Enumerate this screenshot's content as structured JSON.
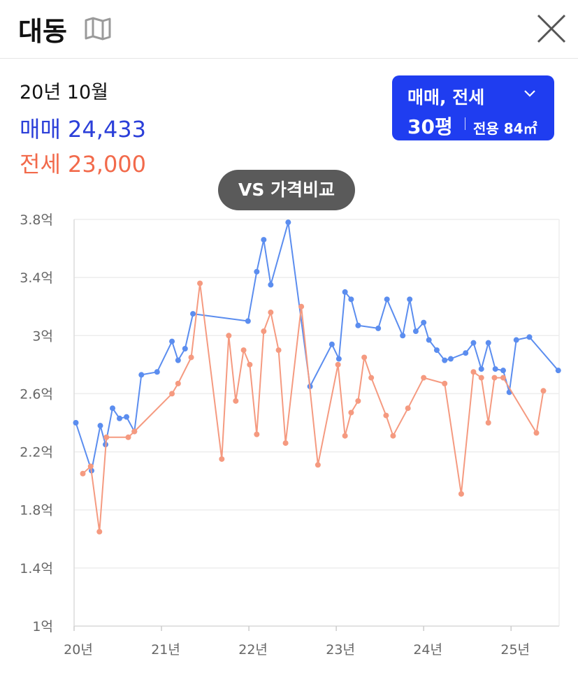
{
  "header": {
    "title": "대동",
    "map_icon": "map-icon",
    "close_icon": "close-icon"
  },
  "summary": {
    "date": "20년 10월",
    "sale_label": "매매 24,433",
    "rent_label": "전세 23,000",
    "sale_color": "#2b3fd9",
    "rent_color": "#f26a4b"
  },
  "selector": {
    "type_label": "매매, 전세",
    "size_label": "30평",
    "area_label": "전용 84㎡",
    "bg_color": "#1f3df0"
  },
  "compare_button": {
    "label": "VS 가격비교"
  },
  "chart_data": {
    "type": "line",
    "x_tick_labels": [
      "20년",
      "21년",
      "22년",
      "23년",
      "24년",
      "25년"
    ],
    "x_tick_values": [
      2020,
      2021,
      2022,
      2023,
      2024,
      2025
    ],
    "xlim": [
      2020,
      2025.55
    ],
    "y_tick_labels": [
      "1억",
      "1.4억",
      "1.8억",
      "2.2억",
      "2.6억",
      "3억",
      "3.4억",
      "3.8억"
    ],
    "y_tick_values": [
      1.0,
      1.4,
      1.8,
      2.2,
      2.6,
      3.0,
      3.4,
      3.8
    ],
    "ylim": [
      1.0,
      3.8
    ],
    "grid": true,
    "series": [
      {
        "color": "#5b8def",
        "points": [
          [
            2020.02,
            2.4
          ],
          [
            2020.2,
            2.07
          ],
          [
            2020.3,
            2.38
          ],
          [
            2020.36,
            2.25
          ],
          [
            2020.44,
            2.5
          ],
          [
            2020.52,
            2.43
          ],
          [
            2020.6,
            2.44
          ],
          [
            2020.69,
            2.34
          ],
          [
            2020.77,
            2.73
          ],
          [
            2020.95,
            2.75
          ],
          [
            2021.12,
            2.96
          ],
          [
            2021.19,
            2.83
          ],
          [
            2021.27,
            2.91
          ],
          [
            2021.36,
            3.15
          ],
          [
            2021.99,
            3.1
          ],
          [
            2022.09,
            3.44
          ],
          [
            2022.17,
            3.66
          ],
          [
            2022.25,
            3.35
          ],
          [
            2022.45,
            3.78
          ],
          [
            2022.7,
            2.65
          ],
          [
            2022.95,
            2.94
          ],
          [
            2023.03,
            2.84
          ],
          [
            2023.1,
            3.3
          ],
          [
            2023.17,
            3.25
          ],
          [
            2023.25,
            3.07
          ],
          [
            2023.48,
            3.05
          ],
          [
            2023.58,
            3.25
          ],
          [
            2023.76,
            3.0
          ],
          [
            2023.84,
            3.25
          ],
          [
            2023.91,
            3.03
          ],
          [
            2024.0,
            3.09
          ],
          [
            2024.06,
            2.97
          ],
          [
            2024.15,
            2.9
          ],
          [
            2024.24,
            2.83
          ],
          [
            2024.31,
            2.84
          ],
          [
            2024.48,
            2.88
          ],
          [
            2024.57,
            2.95
          ],
          [
            2024.66,
            2.77
          ],
          [
            2024.74,
            2.95
          ],
          [
            2024.82,
            2.77
          ],
          [
            2024.91,
            2.76
          ],
          [
            2024.98,
            2.61
          ],
          [
            2025.06,
            2.97
          ],
          [
            2025.21,
            2.99
          ],
          [
            2025.54,
            2.76
          ]
        ]
      },
      {
        "color": "#f59a80",
        "points": [
          [
            2020.1,
            2.05
          ],
          [
            2020.19,
            2.1
          ],
          [
            2020.29,
            1.65
          ],
          [
            2020.37,
            2.3
          ],
          [
            2020.62,
            2.3
          ],
          [
            2020.69,
            2.34
          ],
          [
            2021.12,
            2.6
          ],
          [
            2021.19,
            2.67
          ],
          [
            2021.34,
            2.85
          ],
          [
            2021.44,
            3.36
          ],
          [
            2021.69,
            2.15
          ],
          [
            2021.77,
            3.0
          ],
          [
            2021.85,
            2.55
          ],
          [
            2021.94,
            2.9
          ],
          [
            2022.01,
            2.8
          ],
          [
            2022.09,
            2.32
          ],
          [
            2022.17,
            3.03
          ],
          [
            2022.25,
            3.16
          ],
          [
            2022.34,
            2.9
          ],
          [
            2022.42,
            2.26
          ],
          [
            2022.6,
            3.2
          ],
          [
            2022.79,
            2.11
          ],
          [
            2023.02,
            2.8
          ],
          [
            2023.1,
            2.31
          ],
          [
            2023.17,
            2.47
          ],
          [
            2023.25,
            2.55
          ],
          [
            2023.32,
            2.85
          ],
          [
            2023.4,
            2.71
          ],
          [
            2023.57,
            2.45
          ],
          [
            2023.65,
            2.31
          ],
          [
            2023.82,
            2.5
          ],
          [
            2024.0,
            2.71
          ],
          [
            2024.24,
            2.67
          ],
          [
            2024.43,
            1.91
          ],
          [
            2024.57,
            2.75
          ],
          [
            2024.66,
            2.71
          ],
          [
            2024.74,
            2.4
          ],
          [
            2024.81,
            2.71
          ],
          [
            2024.91,
            2.71
          ],
          [
            2025.29,
            2.33
          ],
          [
            2025.37,
            2.62
          ]
        ]
      }
    ]
  }
}
